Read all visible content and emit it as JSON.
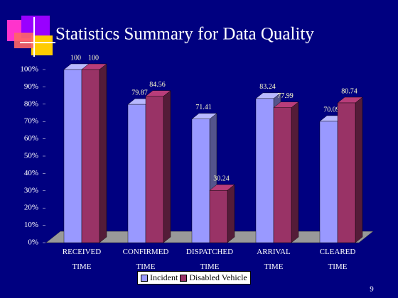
{
  "chart_data": {
    "type": "bar",
    "title": "Statistics Summary for Data Quality",
    "categories": [
      "RECEIVED TIME",
      "CONFIRMED TIME",
      "DISPATCHED TIME",
      "ARRIVAL TIME",
      "CLEARED TIME"
    ],
    "series": [
      {
        "name": "Incident",
        "color": "#9999ff",
        "values": [
          100,
          79.87,
          71.41,
          83.24,
          70.09
        ]
      },
      {
        "name": "Disabled Vehicle",
        "color": "#993366",
        "values": [
          100,
          84.56,
          30.24,
          77.99,
          80.74
        ]
      }
    ],
    "ylim": [
      0,
      100
    ],
    "yticks": [
      {
        "value": 0,
        "label": "0%"
      },
      {
        "value": 10,
        "label": "10%"
      },
      {
        "value": 20,
        "label": "20%"
      },
      {
        "value": 30,
        "label": "30%"
      },
      {
        "value": 40,
        "label": "40%"
      },
      {
        "value": 50,
        "label": "50%"
      },
      {
        "value": 60,
        "label": "60%"
      },
      {
        "value": 70,
        "label": "70%"
      },
      {
        "value": 80,
        "label": "80%"
      },
      {
        "value": 90,
        "label": "90%"
      },
      {
        "value": 100,
        "label": "100%"
      }
    ],
    "legend": "bottom"
  },
  "slide_number": "9"
}
